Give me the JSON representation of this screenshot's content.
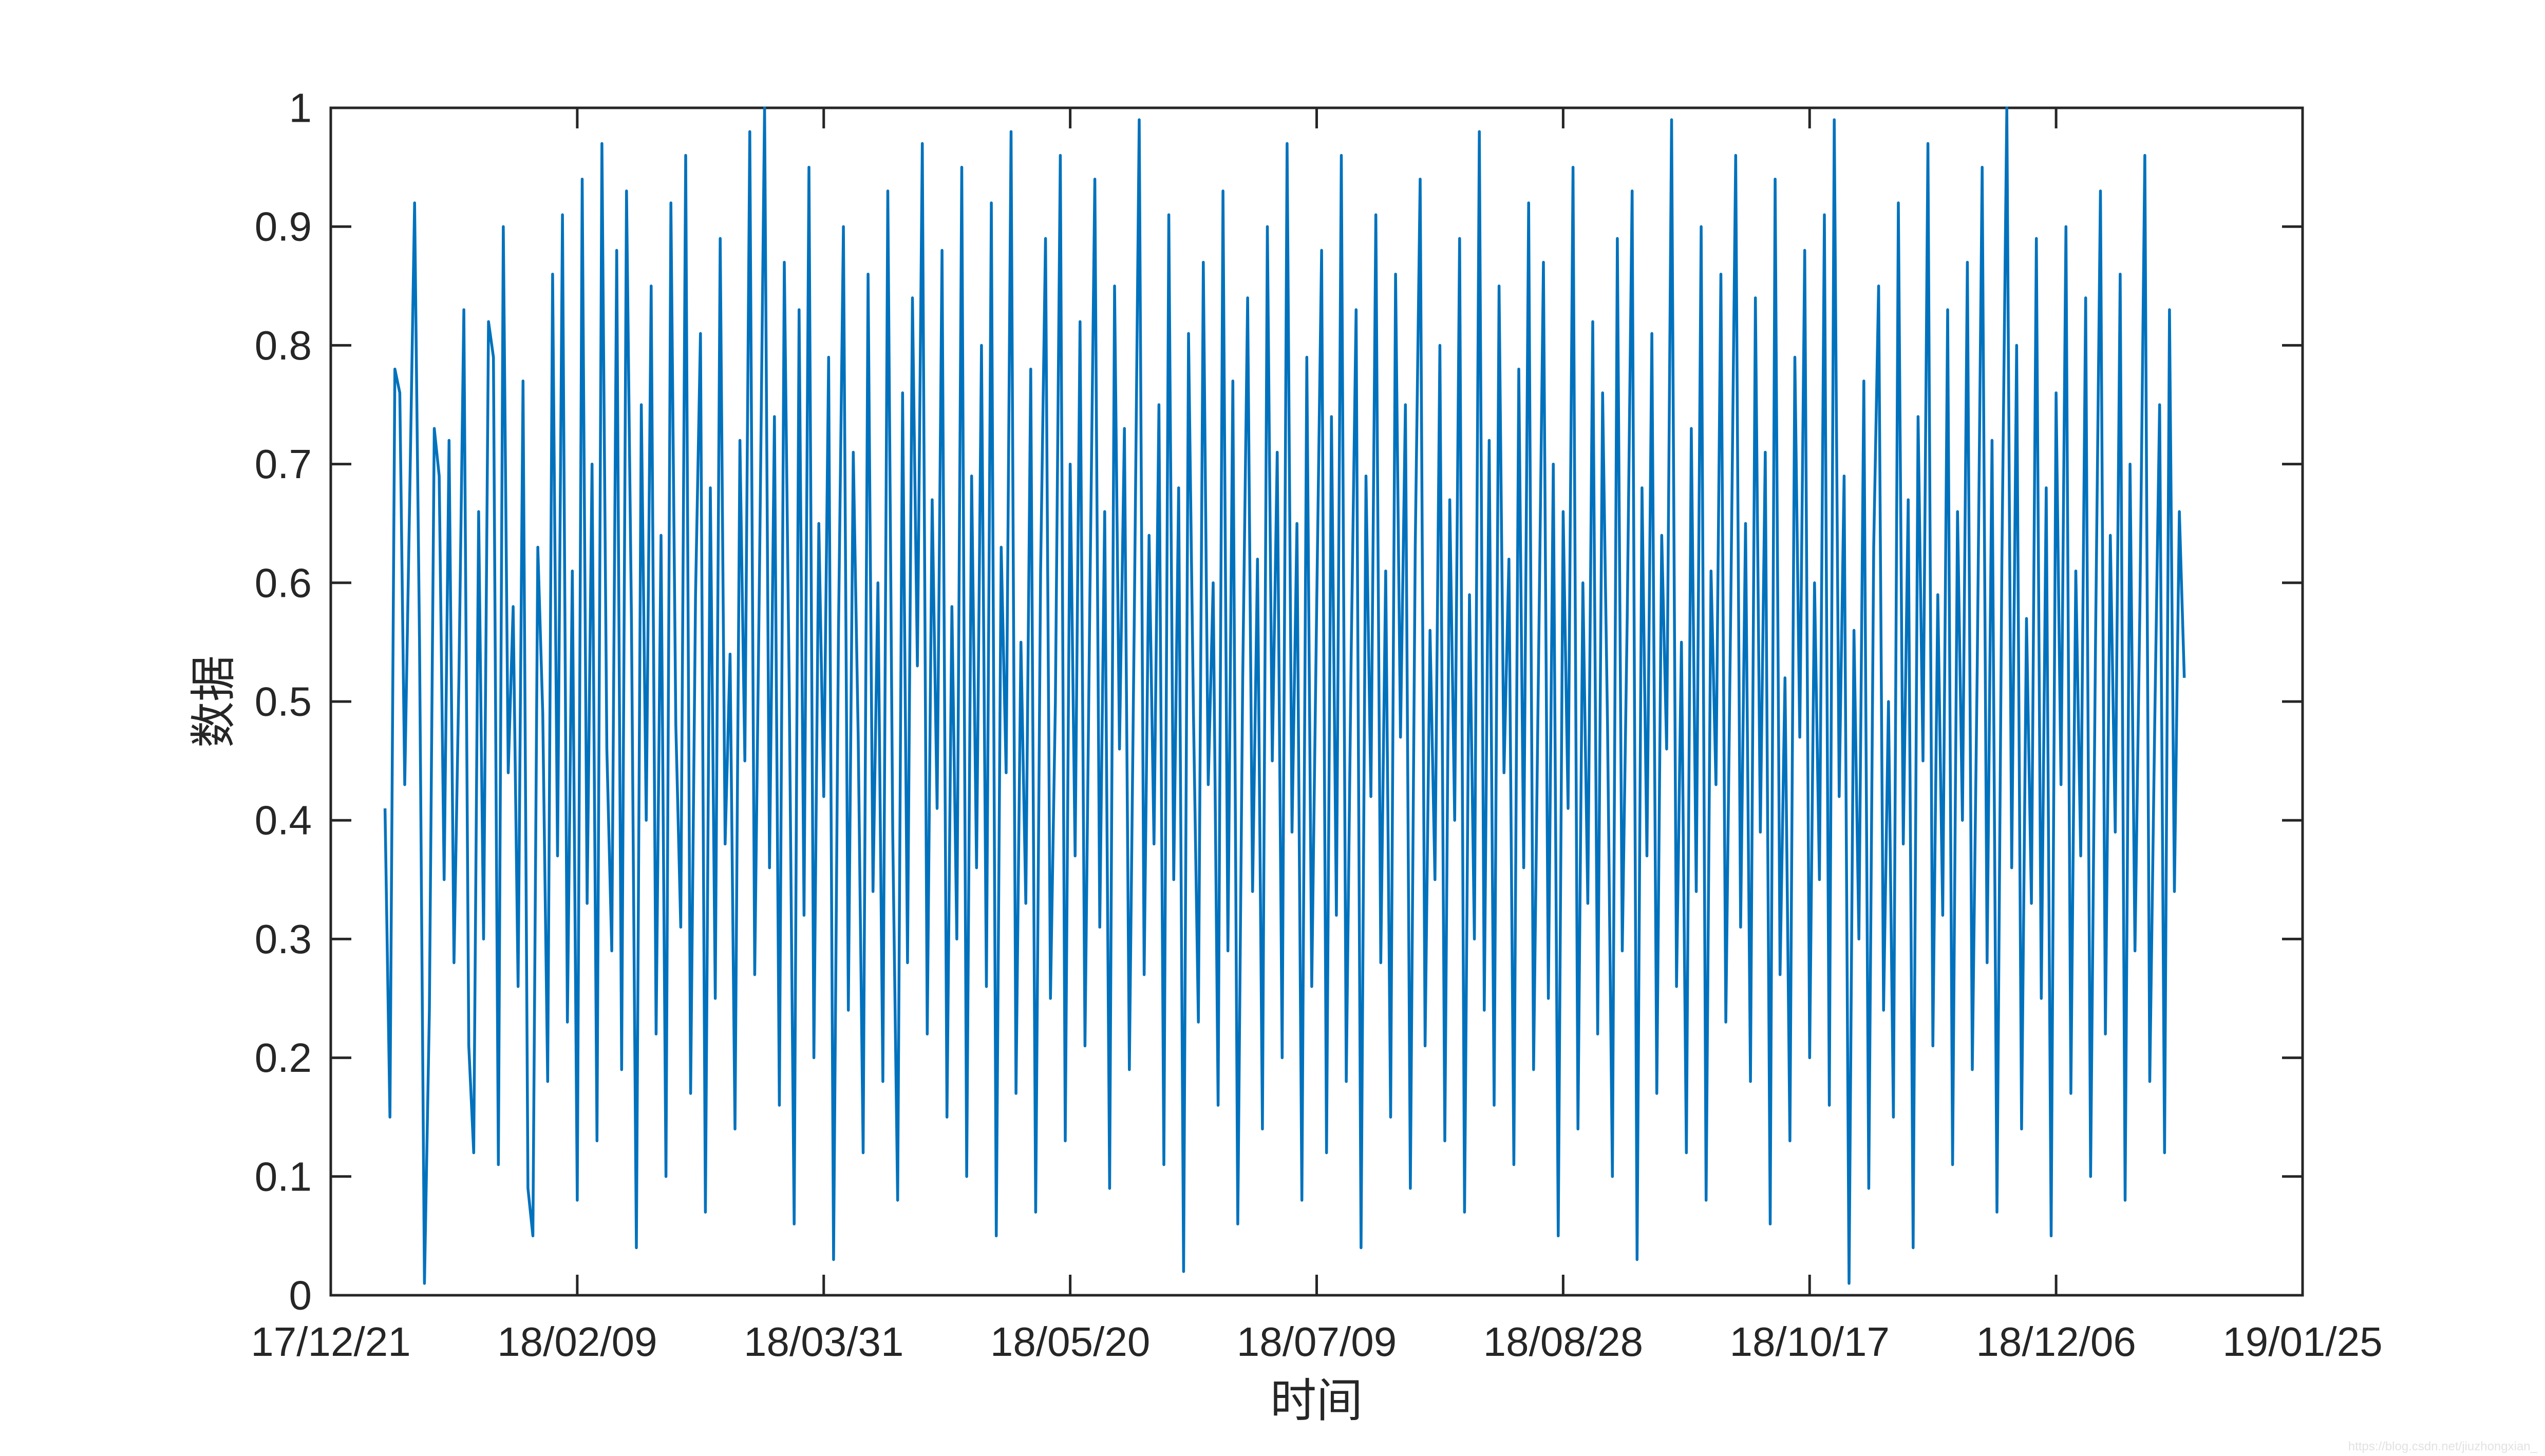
{
  "figure": {
    "background": "#ffffff",
    "axis_color": "#262626",
    "watermark": {
      "text": "https://blog.csdn.net/jiuzhongxian_",
      "color": "#e2e2e2"
    }
  },
  "chart_data": {
    "type": "line",
    "title": "",
    "xlabel": "时间",
    "ylabel": "数据",
    "x_tick_labels": [
      "17/12/21",
      "18/02/09",
      "18/03/31",
      "18/05/20",
      "18/07/09",
      "18/08/28",
      "18/10/17",
      "18/12/06",
      "19/01/25"
    ],
    "x_tick_step_days": 50,
    "xlim_days": 400,
    "y_tick_labels": [
      "0",
      "0.1",
      "0.2",
      "0.3",
      "0.4",
      "0.5",
      "0.6",
      "0.7",
      "0.8",
      "0.9",
      "1"
    ],
    "ylim": [
      0,
      1
    ],
    "grid": false,
    "legend": null,
    "series": [
      {
        "name": "数据",
        "color": "#0072BD",
        "start_date": "18/01/01",
        "start_day_offset": 11,
        "step_days": 1,
        "values": [
          0.41,
          0.15,
          0.78,
          0.76,
          0.43,
          0.67,
          0.92,
          0.55,
          0.01,
          0.24,
          0.73,
          0.69,
          0.35,
          0.72,
          0.28,
          0.52,
          0.83,
          0.21,
          0.12,
          0.66,
          0.3,
          0.82,
          0.79,
          0.11,
          0.9,
          0.44,
          0.58,
          0.26,
          0.77,
          0.09,
          0.05,
          0.63,
          0.49,
          0.18,
          0.86,
          0.37,
          0.91,
          0.23,
          0.61,
          0.08,
          0.94,
          0.33,
          0.7,
          0.13,
          0.97,
          0.46,
          0.29,
          0.88,
          0.19,
          0.93,
          0.57,
          0.04,
          0.75,
          0.4,
          0.85,
          0.22,
          0.64,
          0.1,
          0.92,
          0.48,
          0.31,
          0.96,
          0.17,
          0.59,
          0.81,
          0.07,
          0.68,
          0.25,
          0.89,
          0.38,
          0.54,
          0.14,
          0.72,
          0.45,
          0.98,
          0.27,
          0.62,
          1.0,
          0.36,
          0.74,
          0.16,
          0.87,
          0.51,
          0.06,
          0.83,
          0.32,
          0.95,
          0.2,
          0.65,
          0.42,
          0.79,
          0.03,
          0.56,
          0.9,
          0.24,
          0.71,
          0.47,
          0.12,
          0.86,
          0.34,
          0.6,
          0.18,
          0.93,
          0.39,
          0.08,
          0.76,
          0.28,
          0.84,
          0.53,
          0.97,
          0.22,
          0.67,
          0.41,
          0.88,
          0.15,
          0.58,
          0.3,
          0.95,
          0.1,
          0.69,
          0.36,
          0.8,
          0.26,
          0.92,
          0.05,
          0.63,
          0.44,
          0.98,
          0.17,
          0.55,
          0.33,
          0.78,
          0.07,
          0.61,
          0.89,
          0.25,
          0.5,
          0.96,
          0.13,
          0.7,
          0.37,
          0.82,
          0.21,
          0.59,
          0.94,
          0.31,
          0.66,
          0.09,
          0.85,
          0.46,
          0.73,
          0.19,
          0.57,
          0.99,
          0.27,
          0.64,
          0.38,
          0.75,
          0.11,
          0.91,
          0.35,
          0.68,
          0.02,
          0.81,
          0.49,
          0.23,
          0.87,
          0.43,
          0.6,
          0.16,
          0.93,
          0.29,
          0.77,
          0.06,
          0.52,
          0.84,
          0.34,
          0.62,
          0.14,
          0.9,
          0.45,
          0.71,
          0.2,
          0.97,
          0.39,
          0.65,
          0.08,
          0.79,
          0.26,
          0.58,
          0.88,
          0.12,
          0.74,
          0.32,
          0.96,
          0.18,
          0.54,
          0.83,
          0.04,
          0.69,
          0.42,
          0.91,
          0.28,
          0.61,
          0.15,
          0.86,
          0.47,
          0.75,
          0.09,
          0.63,
          0.94,
          0.21,
          0.56,
          0.35,
          0.8,
          0.13,
          0.67,
          0.4,
          0.89,
          0.07,
          0.59,
          0.3,
          0.98,
          0.24,
          0.72,
          0.16,
          0.85,
          0.44,
          0.62,
          0.11,
          0.78,
          0.36,
          0.92,
          0.19,
          0.53,
          0.87,
          0.25,
          0.7,
          0.05,
          0.66,
          0.41,
          0.95,
          0.14,
          0.6,
          0.33,
          0.82,
          0.22,
          0.76,
          0.48,
          0.1,
          0.89,
          0.29,
          0.57,
          0.93,
          0.03,
          0.68,
          0.37,
          0.81,
          0.17,
          0.64,
          0.46,
          0.99,
          0.26,
          0.55,
          0.12,
          0.73,
          0.34,
          0.9,
          0.08,
          0.61,
          0.43,
          0.86,
          0.23,
          0.58,
          0.96,
          0.31,
          0.65,
          0.18,
          0.84,
          0.39,
          0.71,
          0.06,
          0.94,
          0.27,
          0.52,
          0.13,
          0.79,
          0.47,
          0.88,
          0.2,
          0.6,
          0.35,
          0.91,
          0.16,
          0.99,
          0.42,
          0.69,
          0.01,
          0.56,
          0.3,
          0.77,
          0.09,
          0.63,
          0.85,
          0.24,
          0.5,
          0.15,
          0.92,
          0.38,
          0.67,
          0.04,
          0.74,
          0.45,
          0.97,
          0.21,
          0.59,
          0.32,
          0.83,
          0.11,
          0.66,
          0.4,
          0.87,
          0.19,
          0.53,
          0.95,
          0.28,
          0.72,
          0.07,
          0.62,
          1.0,
          0.36,
          0.8,
          0.14,
          0.57,
          0.33,
          0.89,
          0.25,
          0.68,
          0.05,
          0.76,
          0.43,
          0.9,
          0.17,
          0.61,
          0.37,
          0.84,
          0.1,
          0.55,
          0.93,
          0.22,
          0.64,
          0.39,
          0.86,
          0.08,
          0.7,
          0.29,
          0.58,
          0.96,
          0.18,
          0.48,
          0.75,
          0.12,
          0.83,
          0.34,
          0.66,
          0.52
        ]
      }
    ]
  }
}
